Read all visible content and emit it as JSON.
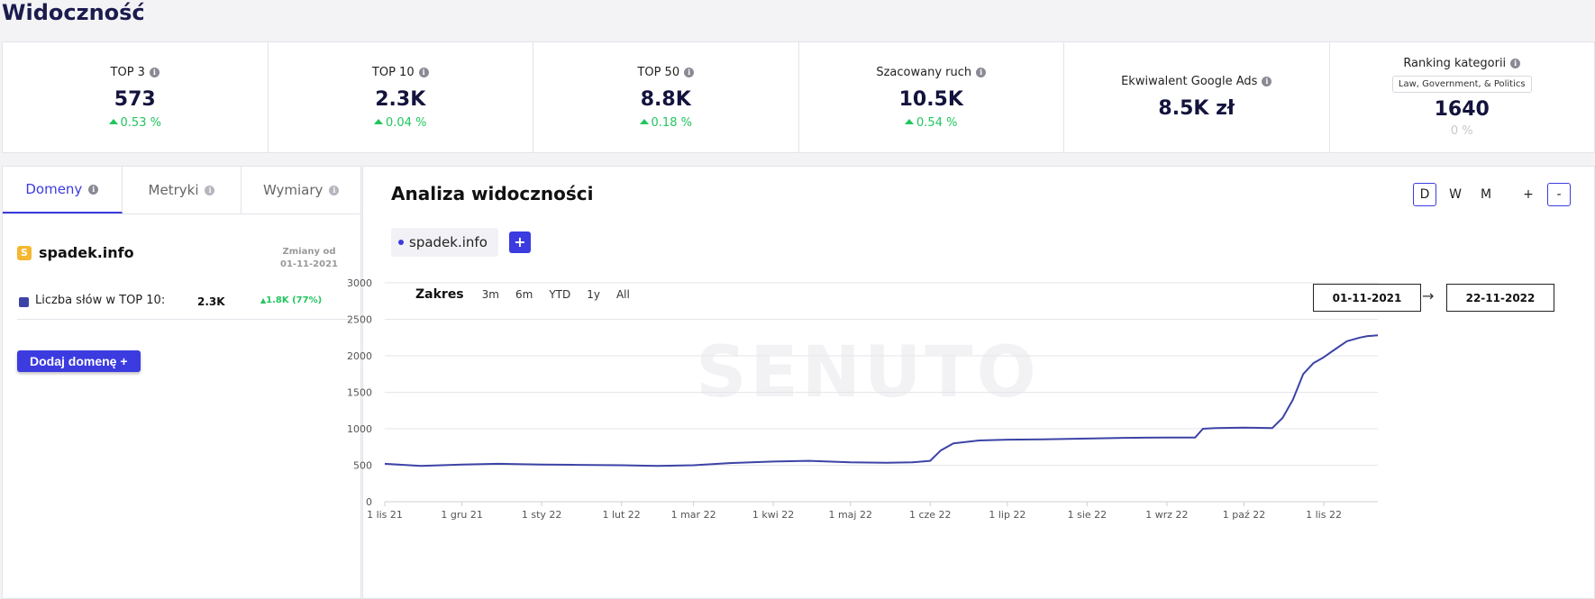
{
  "page": {
    "title": "Widoczność"
  },
  "kpis": [
    {
      "label": "TOP 3",
      "value": "573",
      "change": "0.53 %",
      "trend": "up"
    },
    {
      "label": "TOP 10",
      "value": "2.3K",
      "change": "0.04 %",
      "trend": "up"
    },
    {
      "label": "TOP 50",
      "value": "8.8K",
      "change": "0.18 %",
      "trend": "up"
    },
    {
      "label": "Szacowany ruch",
      "value": "10.5K",
      "change": "0.54 %",
      "trend": "up"
    },
    {
      "label": "Ekwiwalent Google Ads",
      "value": "8.5K zł"
    },
    {
      "label": "Ranking kategorii",
      "category": "Law, Government, & Politics",
      "value": "1640",
      "change": "0 %",
      "trend": "neutral"
    }
  ],
  "left_panel": {
    "tabs": [
      {
        "label": "Domeny",
        "active": true
      },
      {
        "label": "Metryki",
        "active": false
      },
      {
        "label": "Wymiary",
        "active": false
      }
    ],
    "domain": {
      "favicon_letter": "S",
      "name": "spadek.info"
    },
    "changes_since_label": "Zmiany od",
    "changes_since_date": "01-11-2021",
    "metric": {
      "label": "Liczba słów w TOP 10:",
      "value": "2.3K",
      "change": "1.8K",
      "change_pct": "(77%)",
      "color": "#3d43a6"
    },
    "add_domain_label": "Dodaj domenę +"
  },
  "chart_panel": {
    "title": "Analiza widoczności",
    "period_buttons": [
      {
        "label": "D",
        "active": true
      },
      {
        "label": "W",
        "active": false
      },
      {
        "label": "M",
        "active": false
      }
    ],
    "zoom_in_label": "+",
    "zoom_out_label": "-",
    "domain_chip": "spadek.info",
    "add_series_label": "+",
    "range_label": "Zakres",
    "range_buttons": [
      "3m",
      "6m",
      "YTD",
      "1y",
      "All"
    ],
    "date_from": "01-11-2021",
    "date_arrow": "→",
    "date_to": "22-11-2022",
    "watermark": "SENUTO",
    "accent_color": "#3b3be0"
  },
  "chart_data": {
    "type": "line",
    "title": "",
    "xlabel": "",
    "ylabel": "",
    "ylim": [
      0,
      3000
    ],
    "yticks": [
      0,
      500,
      1000,
      1500,
      2000,
      2500,
      3000
    ],
    "xtick_labels": [
      "1 lis 21",
      "1 gru 21",
      "1 sty 22",
      "1 lut 22",
      "1 mar 22",
      "1 kwi 22",
      "1 maj 22",
      "1 cze 22",
      "1 lip 22",
      "1 sie 22",
      "1 wrz 22",
      "1 paź 22",
      "1 lis 22"
    ],
    "grid": true,
    "color": "#3d43a6",
    "series": [
      {
        "name": "spadek.info",
        "x": [
          "2021-11-01",
          "2021-11-15",
          "2021-12-01",
          "2021-12-15",
          "2022-01-01",
          "2022-01-15",
          "2022-02-01",
          "2022-02-15",
          "2022-03-01",
          "2022-03-15",
          "2022-04-01",
          "2022-04-15",
          "2022-05-01",
          "2022-05-15",
          "2022-05-25",
          "2022-06-01",
          "2022-06-05",
          "2022-06-10",
          "2022-06-20",
          "2022-07-01",
          "2022-07-15",
          "2022-08-01",
          "2022-08-15",
          "2022-09-01",
          "2022-09-12",
          "2022-09-15",
          "2022-09-20",
          "2022-10-01",
          "2022-10-12",
          "2022-10-16",
          "2022-10-20",
          "2022-10-24",
          "2022-10-28",
          "2022-11-01",
          "2022-11-05",
          "2022-11-10",
          "2022-11-15",
          "2022-11-18",
          "2022-11-22"
        ],
        "values": [
          520,
          490,
          510,
          520,
          510,
          505,
          500,
          490,
          500,
          530,
          550,
          560,
          540,
          535,
          540,
          560,
          700,
          800,
          840,
          850,
          855,
          865,
          875,
          880,
          880,
          1000,
          1010,
          1015,
          1010,
          1150,
          1400,
          1750,
          1900,
          1980,
          2080,
          2200,
          2250,
          2270,
          2280
        ]
      }
    ]
  }
}
